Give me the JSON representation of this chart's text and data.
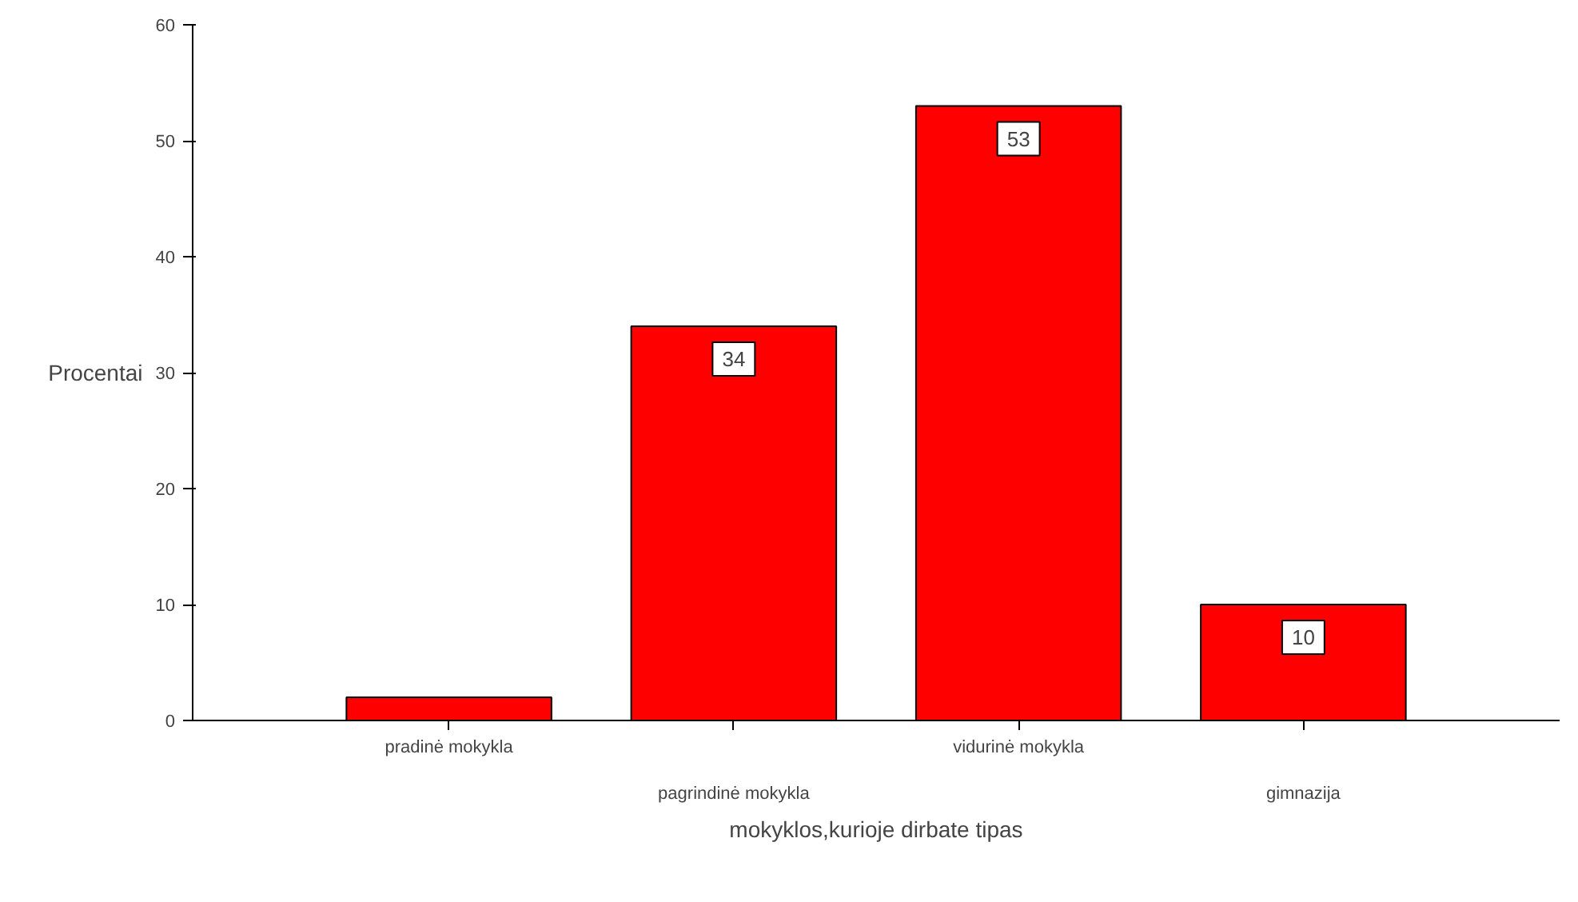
{
  "chart_data": {
    "type": "bar",
    "categories": [
      "pradinė mokykla",
      "pagrindinė mokykla",
      "vidurinė mokykla",
      "gimnazija"
    ],
    "values": [
      2,
      34,
      53,
      10
    ],
    "value_labels": [
      null,
      "34",
      "53",
      "10"
    ],
    "color": "#ff0000",
    "ylim": [
      0,
      60
    ],
    "yticks": [
      0,
      10,
      20,
      30,
      40,
      50,
      60
    ],
    "ylabel": "Procentai",
    "xlabel": "mokyklos,kurioje dirbate tipas",
    "grid": false
  }
}
